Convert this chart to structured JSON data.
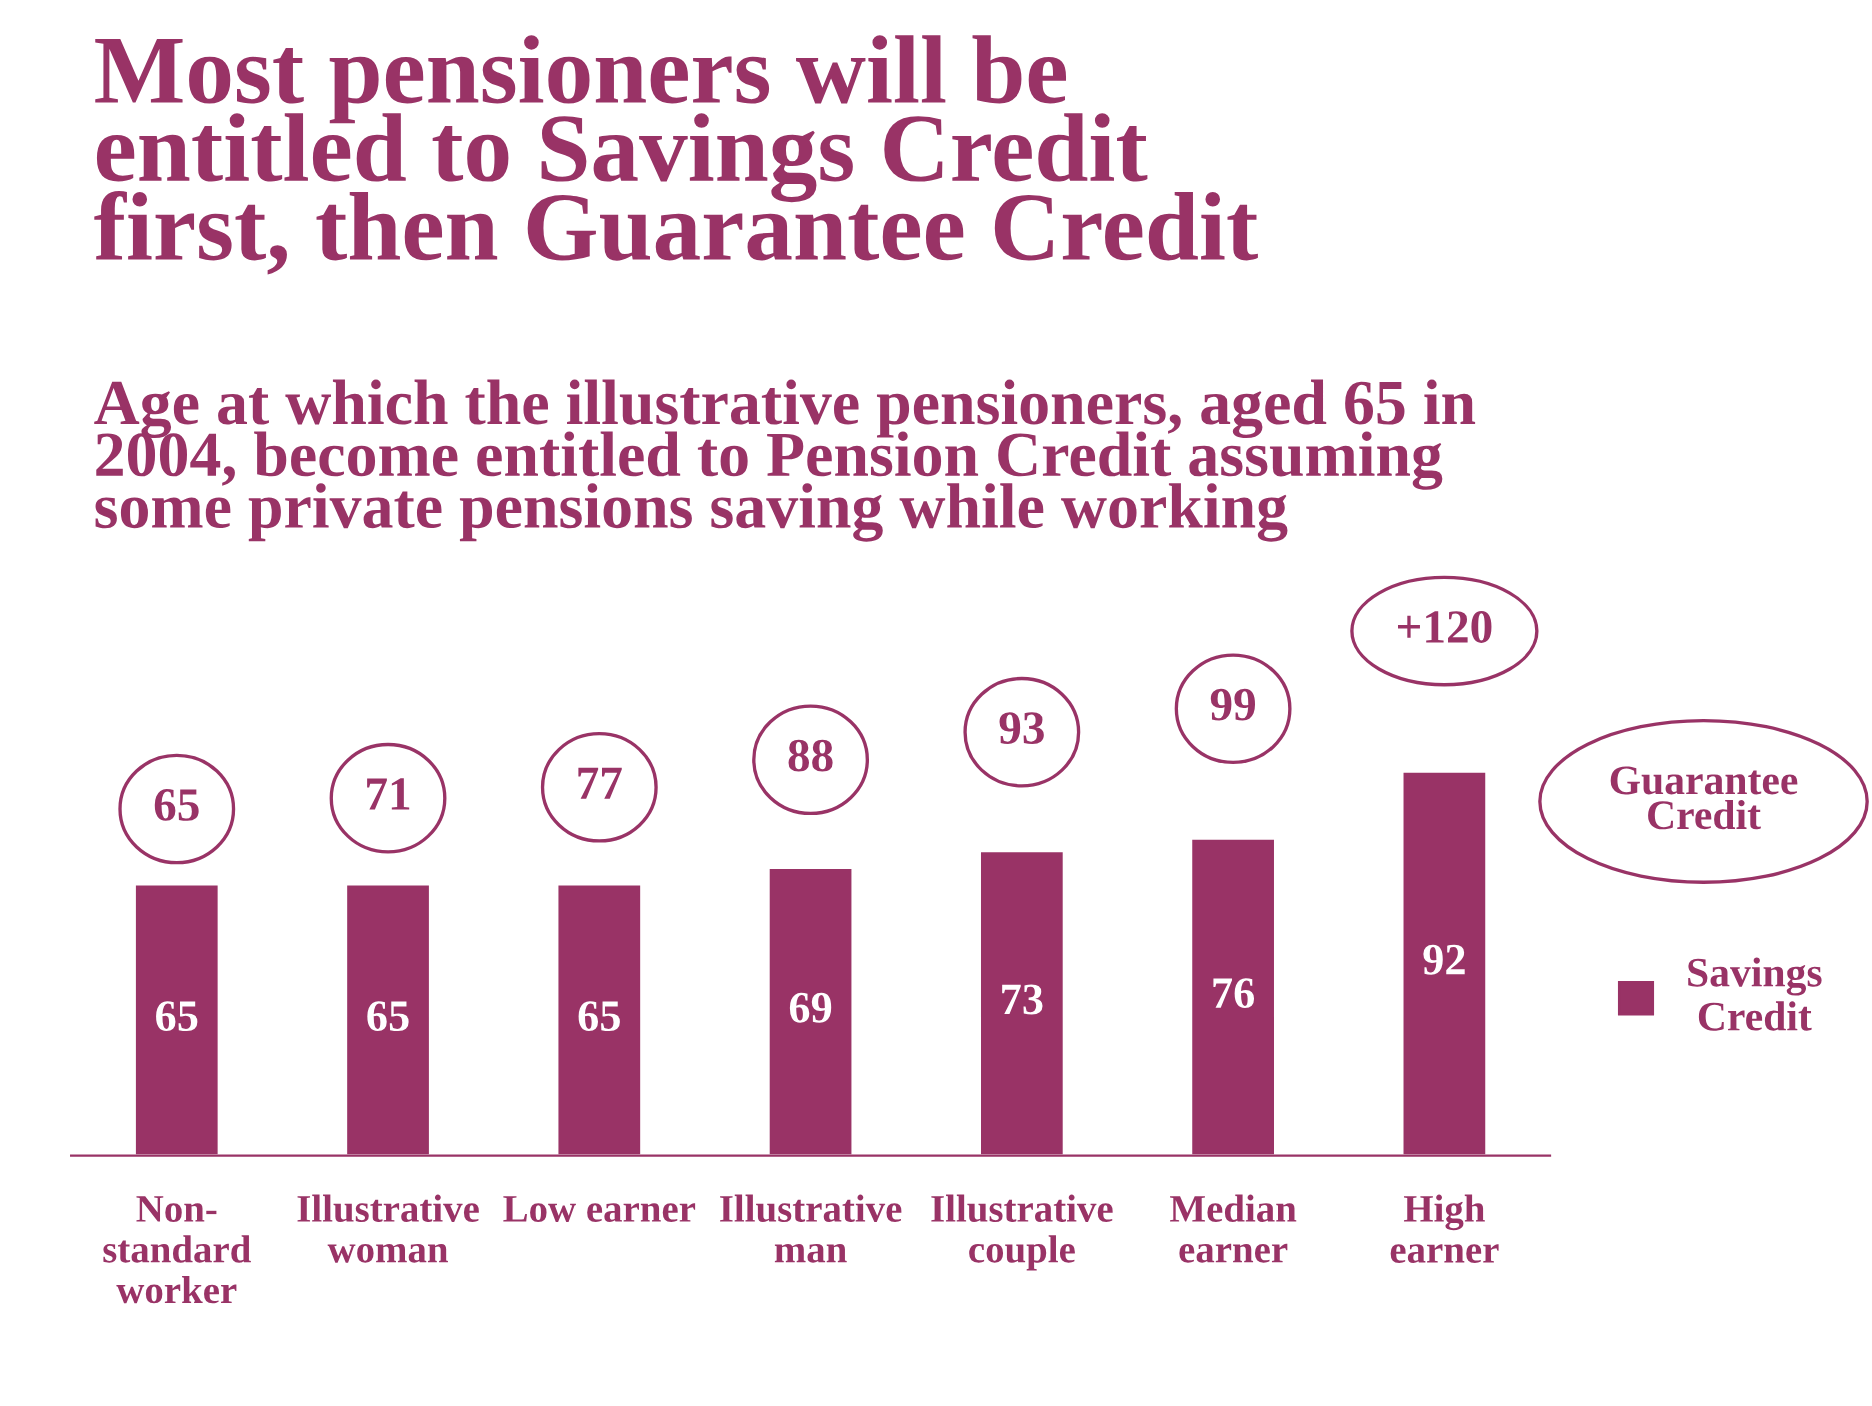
{
  "chart_data": {
    "type": "bar",
    "title": "Most pensioners will be\nentitled to Savings Credit\nfirst, then Guarantee Credit",
    "subtitle": "Age at which the illustrative pensioners, aged 65 in\n2004, become entitled to Pension Credit assuming\nsome private pensions saving while working",
    "categories": [
      "Non-\nstandard\nworker",
      "Illustrative\nwoman",
      "Low earner",
      "Illustrative\nman",
      "Illustrative\ncouple",
      "Median\nearner",
      "High\nearner"
    ],
    "series": [
      {
        "name": "Savings Credit",
        "color": "#993366",
        "values": [
          65,
          65,
          65,
          69,
          73,
          76,
          92
        ]
      }
    ],
    "data_labels": true,
    "legend": "right",
    "annotations": [
      "Guarantee\nCredit",
      "65",
      "71",
      "77",
      "88",
      "93",
      "99",
      "+120"
    ]
  }
}
